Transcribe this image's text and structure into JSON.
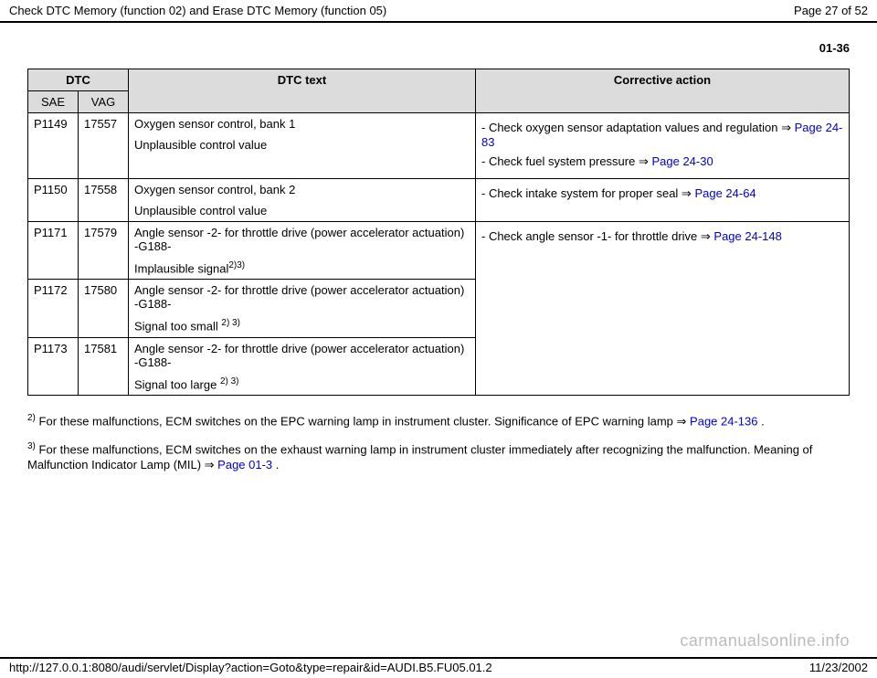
{
  "header": {
    "title": "Check DTC Memory (function 02) and Erase DTC Memory (function 05)",
    "page_indicator": "Page 27 of 52"
  },
  "page_code": "01-36",
  "table": {
    "headers": {
      "dtc": "DTC",
      "dtc_text": "DTC text",
      "corrective": "Corrective action",
      "sae": "SAE",
      "vag": "VAG"
    },
    "rows": [
      {
        "sae": "P1149",
        "vag": "17557",
        "text_line1": "Oxygen sensor control, bank 1",
        "text_line2": "Unplausible control value",
        "sup": "",
        "action_idx": 0
      },
      {
        "sae": "P1150",
        "vag": "17558",
        "text_line1": "Oxygen sensor control, bank 2",
        "text_line2": "Unplausible control value",
        "sup": "",
        "action_idx": 1
      },
      {
        "sae": "P1171",
        "vag": "17579",
        "text_line1": "Angle sensor -2- for throttle drive (power accelerator actuation) -G188-",
        "text_line2": "Implausible signal",
        "sup": "2)3)",
        "action_idx": 2
      },
      {
        "sae": "P1172",
        "vag": "17580",
        "text_line1": "Angle sensor -2- for throttle drive (power accelerator actuation) -G188-",
        "text_line2": "Signal too small ",
        "sup": "2) 3)",
        "action_idx": -1
      },
      {
        "sae": "P1173",
        "vag": "17581",
        "text_line1": "Angle sensor -2- for throttle drive (power accelerator actuation) -G188-",
        "text_line2": "Signal too large ",
        "sup": "2) 3)",
        "action_idx": -1
      }
    ],
    "actions": [
      {
        "rowspan": 1,
        "items": [
          {
            "pre": "- Check oxygen sensor adaptation values and regulation ",
            "link": "Page 24-83",
            "post": ""
          },
          {
            "pre": "- Check fuel system pressure ",
            "link": "Page 24-30",
            "post": ""
          }
        ]
      },
      {
        "rowspan": 1,
        "items": [
          {
            "pre": "- Check intake system for proper seal ",
            "link": "Page 24-64",
            "post": ""
          }
        ]
      },
      {
        "rowspan": 3,
        "items": [
          {
            "pre": "- Check angle sensor -1- for throttle drive ",
            "link": "Page 24-148",
            "post": ""
          }
        ]
      }
    ]
  },
  "footnotes": {
    "fn2_pre": "For these malfunctions, ECM switches on the EPC warning lamp in instrument cluster. Significance of EPC warning lamp ",
    "fn2_link": "Page 24-136",
    "fn2_post": " .",
    "fn3_pre": "For these malfunctions, ECM switches on the exhaust warning lamp in instrument cluster immediately after recognizing the malfunction. Meaning of Malfunction Indicator Lamp (MIL) ",
    "fn3_link": "Page 01-3",
    "fn3_post": " ."
  },
  "watermark": "carmanualsonline.info",
  "footer": {
    "url": "http://127.0.0.1:8080/audi/servlet/Display?action=Goto&type=repair&id=AUDI.B5.FU05.01.2",
    "date": "11/23/2002"
  },
  "colors": {
    "header_bg": "#dcdcdc",
    "link": "#0000cc",
    "watermark": "#bbbbbb"
  },
  "arrow": "⇒"
}
